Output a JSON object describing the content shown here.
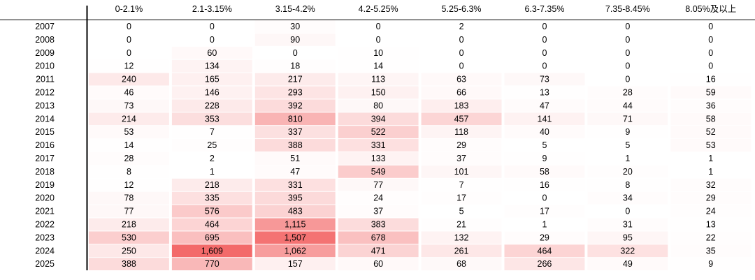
{
  "chart_data": {
    "type": "heatmap",
    "columns": [
      "0-2.1%",
      "2.1-3.15%",
      "3.15-4.2%",
      "4.2-5.25%",
      "5.25-6.3%",
      "6.3-7.35%",
      "7.35-8.45%",
      "8.05%及以上"
    ],
    "rows": [
      "2007",
      "2008",
      "2009",
      "2010",
      "2011",
      "2012",
      "2013",
      "2014",
      "2015",
      "2016",
      "2017",
      "2018",
      "2019",
      "2020",
      "2021",
      "2022",
      "2023",
      "2024",
      "2025"
    ],
    "values": [
      [
        0,
        0,
        30,
        0,
        2,
        0,
        0,
        0
      ],
      [
        0,
        0,
        90,
        0,
        0,
        0,
        0,
        0
      ],
      [
        0,
        60,
        0,
        10,
        0,
        0,
        0,
        0
      ],
      [
        12,
        134,
        18,
        14,
        0,
        0,
        0,
        0
      ],
      [
        240,
        165,
        217,
        113,
        63,
        73,
        0,
        16
      ],
      [
        46,
        146,
        293,
        150,
        66,
        13,
        28,
        59
      ],
      [
        73,
        228,
        392,
        80,
        183,
        47,
        44,
        36
      ],
      [
        214,
        353,
        810,
        394,
        457,
        141,
        71,
        58
      ],
      [
        53,
        7,
        337,
        522,
        118,
        40,
        9,
        52
      ],
      [
        14,
        25,
        388,
        331,
        29,
        5,
        5,
        53
      ],
      [
        28,
        2,
        51,
        133,
        37,
        9,
        1,
        1
      ],
      [
        8,
        1,
        47,
        549,
        101,
        58,
        20,
        1
      ],
      [
        12,
        218,
        331,
        77,
        7,
        16,
        8,
        32
      ],
      [
        78,
        335,
        395,
        24,
        17,
        0,
        34,
        29
      ],
      [
        77,
        576,
        483,
        37,
        5,
        17,
        0,
        24
      ],
      [
        218,
        464,
        1115,
        383,
        21,
        1,
        31,
        13
      ],
      [
        530,
        695,
        1507,
        678,
        132,
        29,
        95,
        22
      ],
      [
        250,
        1609,
        1062,
        471,
        261,
        464,
        322,
        35
      ],
      [
        388,
        770,
        157,
        60,
        68,
        266,
        49,
        9
      ]
    ],
    "value_format": "thousands-comma",
    "color_scale": {
      "low": "#ffffff",
      "high": "#f36a6a"
    }
  }
}
